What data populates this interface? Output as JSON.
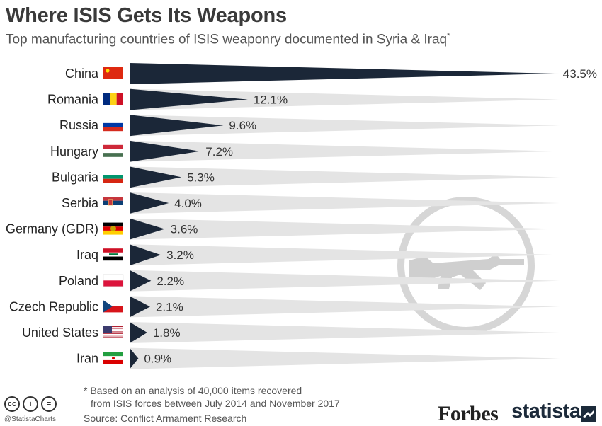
{
  "title": "Where ISIS Gets Its Weapons",
  "subtitle": "Top manufacturing countries of ISIS weaponry documented in Syria & Iraq",
  "subtitle_mark": "*",
  "footnote": {
    "line1": "* Based on an analysis of 40,000 items recovered",
    "line2": "from ISIS forces between July 2014 and November 2017"
  },
  "source": "Source: Conflict Armament Research",
  "handle": "@StatistaCharts",
  "license_icons": [
    "cc",
    "i",
    "="
  ],
  "brands": {
    "forbes": "Forbes",
    "statista": "statista"
  },
  "colors": {
    "bar": "#1b2738",
    "track": "#e4e4e4",
    "watermark": "#d0d0d0",
    "text": "#222222"
  },
  "chart_data": {
    "type": "bar",
    "orientation": "horizontal",
    "categories": [
      "China",
      "Romania",
      "Russia",
      "Hungary",
      "Bulgaria",
      "Serbia",
      "Germany (GDR)",
      "Iraq",
      "Poland",
      "Czech Republic",
      "United States",
      "Iran"
    ],
    "values": [
      43.5,
      12.1,
      9.6,
      7.2,
      5.3,
      4.0,
      3.6,
      3.2,
      2.2,
      2.1,
      1.8,
      0.9
    ],
    "value_labels": [
      "43.5%",
      "12.1%",
      "9.6%",
      "7.2%",
      "5.3%",
      "4.0%",
      "3.6%",
      "3.2%",
      "2.2%",
      "2.1%",
      "1.8%",
      "0.9%"
    ],
    "flags": [
      "china-flag-icon",
      "romania-flag-icon",
      "russia-flag-icon",
      "hungary-flag-icon",
      "bulgaria-flag-icon",
      "serbia-flag-icon",
      "gdr-flag-icon",
      "iraq-flag-icon",
      "poland-flag-icon",
      "czech-flag-icon",
      "usa-flag-icon",
      "iran-flag-icon"
    ],
    "unit": "%",
    "xlim": [
      0,
      45
    ],
    "grid": false,
    "legend": "none"
  }
}
